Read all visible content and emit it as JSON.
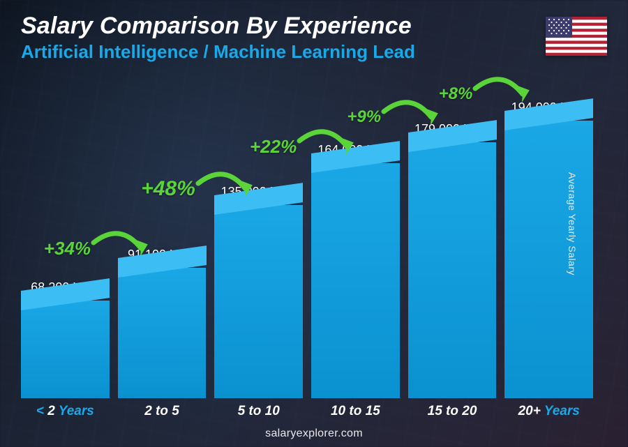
{
  "header": {
    "title": "Salary Comparison By Experience",
    "subtitle": "Artificial Intelligence / Machine Learning Lead",
    "flag_country": "United States"
  },
  "axis": {
    "y_label": "Average Yearly Salary"
  },
  "attribution": "salaryexplorer.com",
  "chart": {
    "type": "bar",
    "currency": "USD",
    "max_value": 210000,
    "value_fontsize": 18,
    "x_label_fontsize": 19,
    "background": "photo-dark-office",
    "bar_color_top": "#3cbef5",
    "bar_color_main_start": "#1aa7e6",
    "bar_color_main_end": "#0a91d0",
    "text_color": "#ffffff",
    "accent_color": "#1aa9e8",
    "growth_color": "#5bd43a",
    "bars": [
      {
        "value": 68200,
        "value_label": "68,200 USD",
        "x_prefix": "< ",
        "x_main": "2",
        "x_suffix": " Years"
      },
      {
        "value": 91100,
        "value_label": "91,100 USD",
        "x_prefix": "",
        "x_main": "2 to 5",
        "x_suffix": ""
      },
      {
        "value": 135000,
        "value_label": "135,000 USD",
        "x_prefix": "",
        "x_main": "5 to 10",
        "x_suffix": ""
      },
      {
        "value": 164000,
        "value_label": "164,000 USD",
        "x_prefix": "",
        "x_main": "10 to 15",
        "x_suffix": ""
      },
      {
        "value": 179000,
        "value_label": "179,000 USD",
        "x_prefix": "",
        "x_main": "15 to 20",
        "x_suffix": ""
      },
      {
        "value": 194000,
        "value_label": "194,000 USD",
        "x_prefix": "",
        "x_main": "20+",
        "x_suffix": " Years"
      }
    ],
    "growth_arrows": [
      {
        "label": "+34%",
        "fontsize": 26,
        "left_pct": 4,
        "top_pct": 48
      },
      {
        "label": "+48%",
        "fontsize": 30,
        "left_pct": 21,
        "top_pct": 30
      },
      {
        "label": "+22%",
        "fontsize": 26,
        "left_pct": 40,
        "top_pct": 17
      },
      {
        "label": "+9%",
        "fontsize": 24,
        "left_pct": 57,
        "top_pct": 8
      },
      {
        "label": "+8%",
        "fontsize": 24,
        "left_pct": 73,
        "top_pct": 1
      }
    ]
  }
}
